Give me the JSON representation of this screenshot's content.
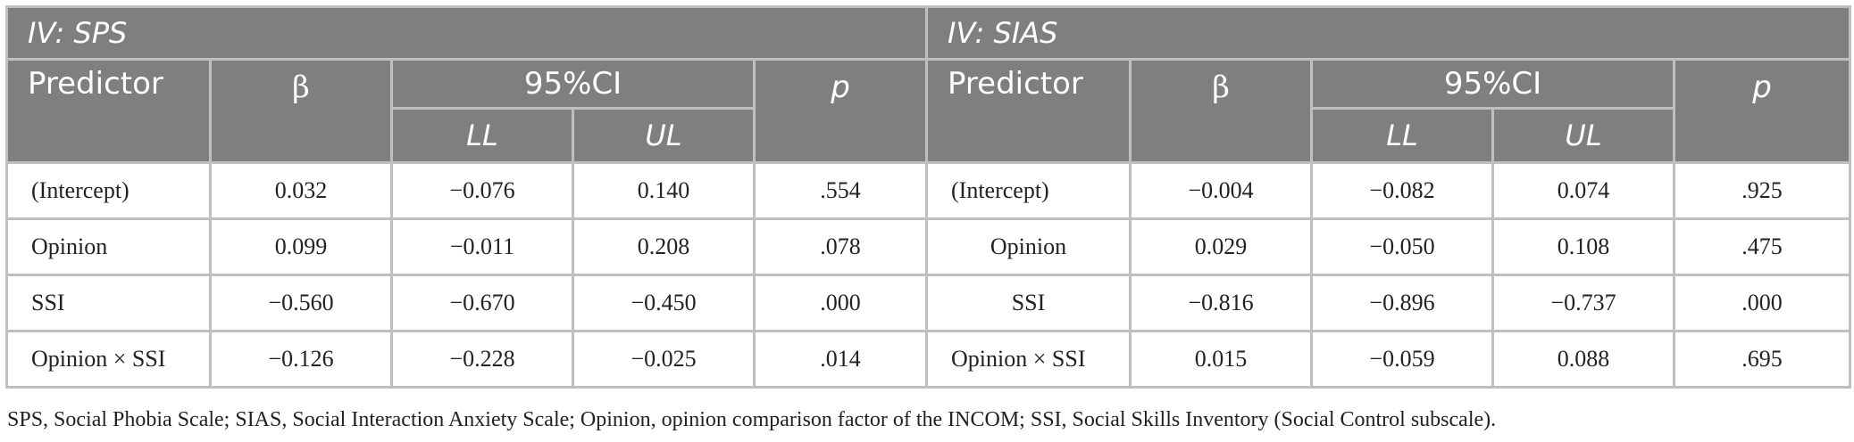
{
  "groups": [
    {
      "title": "IV: SPS",
      "columns": {
        "predictor": "Predictor",
        "beta": "β",
        "ci": "95%CI",
        "ll": "LL",
        "ul": "UL",
        "p": "p"
      },
      "rows": [
        {
          "predictor": "(Intercept)",
          "beta": "0.032",
          "ll": "−0.076",
          "ul": "0.140",
          "p": ".554"
        },
        {
          "predictor": "Opinion",
          "beta": "0.099",
          "ll": "−0.011",
          "ul": "0.208",
          "p": ".078"
        },
        {
          "predictor": "SSI",
          "beta": "−0.560",
          "ll": "−0.670",
          "ul": "−0.450",
          "p": ".000"
        },
        {
          "predictor": "Opinion × SSI",
          "beta": "−0.126",
          "ll": "−0.228",
          "ul": "−0.025",
          "p": ".014"
        }
      ]
    },
    {
      "title": "IV: SIAS",
      "columns": {
        "predictor": "Predictor",
        "beta": "β",
        "ci": "95%CI",
        "ll": "LL",
        "ul": "UL",
        "p": "p"
      },
      "rows": [
        {
          "predictor": "(Intercept)",
          "beta": "−0.004",
          "ll": "−0.082",
          "ul": "0.074",
          "p": ".925"
        },
        {
          "predictor": "Opinion",
          "beta": "0.029",
          "ll": "−0.050",
          "ul": "0.108",
          "p": ".475"
        },
        {
          "predictor": "SSI",
          "beta": "−0.816",
          "ll": "−0.896",
          "ul": "−0.737",
          "p": ".000"
        },
        {
          "predictor": "Opinion × SSI",
          "beta": "0.015",
          "ll": "−0.059",
          "ul": "0.088",
          "p": ".695"
        }
      ]
    }
  ],
  "footnote": "SPS, Social Phobia Scale; SIAS, Social Interaction Anxiety Scale; Opinion, opinion comparison factor of the INCOM; SSI, Social Skills Inventory (Social Control subscale)."
}
